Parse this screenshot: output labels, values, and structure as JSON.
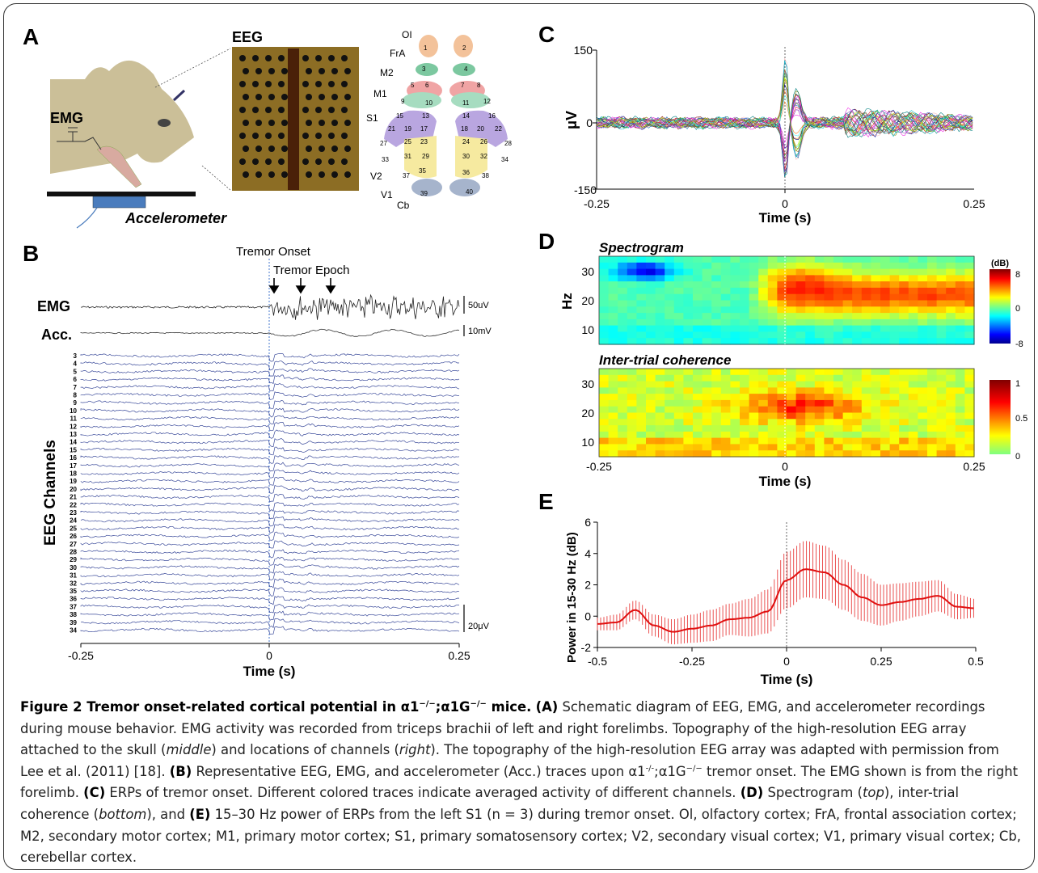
{
  "panelA": {
    "letter": "A",
    "emg_label": "EMG",
    "eeg_label": "EEG",
    "accelerometer_label": "Accelerometer",
    "regions": [
      "OI",
      "FrA",
      "M2",
      "M1",
      "S1",
      "V2",
      "V1",
      "Cb"
    ],
    "channel_numbers": [
      "1",
      "2",
      "3",
      "4",
      "5",
      "6",
      "7",
      "8",
      "9",
      "10",
      "11",
      "12",
      "13",
      "14",
      "15",
      "16",
      "17",
      "18",
      "19",
      "20",
      "21",
      "22",
      "23",
      "24",
      "25",
      "26",
      "27",
      "28",
      "29",
      "30",
      "31",
      "32",
      "33",
      "34",
      "35",
      "36",
      "37",
      "38",
      "39",
      "40"
    ]
  },
  "panelB": {
    "letter": "B",
    "tremor_onset": "Tremor Onset",
    "tremor_epoch": "Tremor Epoch",
    "emg_label": "EMG",
    "acc_label": "Acc.",
    "emg_scale": "50uV",
    "acc_scale": "10mV",
    "eeg_scale": "20μV",
    "ylabel": "EEG Channels",
    "channels": [
      "3",
      "4",
      "5",
      "6",
      "7",
      "8",
      "9",
      "10",
      "11",
      "12",
      "13",
      "14",
      "15",
      "16",
      "17",
      "18",
      "19",
      "20",
      "21",
      "22",
      "23",
      "24",
      "25",
      "26",
      "27",
      "28",
      "29",
      "30",
      "31",
      "32",
      "35",
      "36",
      "37",
      "38",
      "39",
      "34"
    ],
    "xticks": [
      "-0.25",
      "0",
      "0.25"
    ],
    "xlabel": "Time (s)"
  },
  "panelC": {
    "letter": "C",
    "ylabel": "μV",
    "yticks": [
      "150",
      "0",
      "-150"
    ],
    "xticks": [
      "-0.25",
      "0",
      "0.25"
    ],
    "xlabel": "Time (s)"
  },
  "panelD": {
    "letter": "D",
    "spectrogram_title": "Spectrogram",
    "itc_title": "Inter-trial coherence",
    "ylabel": "Hz",
    "yticks": [
      "30",
      "20",
      "10"
    ],
    "colorbar1_unit": "(dB)",
    "colorbar1_ticks": [
      "8",
      "0",
      "-8"
    ],
    "colorbar2_ticks": [
      "1",
      "0.5",
      "0"
    ],
    "xticks": [
      "-0.25",
      "0",
      "0.25"
    ],
    "xlabel": "Time (s)"
  },
  "panelE": {
    "letter": "E",
    "ylabel": "Power in 15-30 Hz (dB)",
    "yticks": [
      "6",
      "4",
      "2",
      "0",
      "-2"
    ],
    "xticks": [
      "-0.5",
      "-0.25",
      "0",
      "0.25",
      "0.5"
    ],
    "xlabel": "Time (s)"
  },
  "caption": {
    "lead": "Figure 2 Tremor onset-related cortical potential in α1",
    "lead_sup1": "−/−",
    "lead_mid": ";α1G",
    "lead_sup2": "−/−",
    "lead_end": " mice.",
    "tA": "(A)",
    "t1": " Schematic diagram of EEG, EMG, and accelerometer recordings during mouse behavior. EMG activity was recorded from triceps brachii of left and right forelimbs. Topography of the high-resolution EEG array attached to the skull (",
    "middle": "middle",
    "t2": ") and locations of channels (",
    "right": "right",
    "t3": "). The topography of the high-resolution EEG array was adapted with permission from Lee et al. (2011) [18]. ",
    "tB": "(B)",
    "t4": " Representative EEG, EMG, and accelerometer (Acc.) traces upon α1",
    "sup3": "-/-",
    "t5": ";α1G",
    "sup4": "−/−",
    "t6": " tremor onset. The EMG shown is from the right forelimb. ",
    "tC": "(C)",
    "t7": " ERPs of tremor onset. Different colored traces indicate averaged activity of different channels. ",
    "tD": "(D)",
    "t8": " Spectrogram (",
    "top": "top",
    "t9": "), inter-trial coherence (",
    "bottom": "bottom",
    "t10": "), and ",
    "tE": "(E)",
    "t11": " 15–30 Hz power of ERPs from the left S1 (n = 3) during tremor onset. Ol, olfactory cortex; FrA, frontal association cortex; M2, secondary motor cortex; M1, primary motor cortex; S1, primary somatosensory cortex; V2, secondary visual cortex; V1, primary visual cortex; Cb, cerebellar cortex."
  },
  "chart_data": [
    {
      "type": "line",
      "panel": "C",
      "ylabel": "μV",
      "xlabel": "Time (s)",
      "xlim": [
        -0.25,
        0.25
      ],
      "ylim": [
        -150,
        150
      ],
      "x": [
        -0.25,
        -0.2,
        -0.15,
        -0.1,
        -0.05,
        -0.02,
        0,
        0.01,
        0.02,
        0.05,
        0.1,
        0.15,
        0.2,
        0.25
      ],
      "series": [
        {
          "values": [
            0,
            3,
            -4,
            5,
            -6,
            8,
            130,
            60,
            -40,
            20,
            30,
            -25,
            15,
            5
          ]
        },
        {
          "values": [
            2,
            -3,
            4,
            -5,
            6,
            -10,
            -100,
            -50,
            30,
            -15,
            -30,
            25,
            -20,
            -3
          ]
        }
      ]
    },
    {
      "type": "heatmap",
      "panel": "D",
      "title": "Spectrogram",
      "xlabel": "Time (s)",
      "ylabel": "Hz",
      "xlim": [
        -0.25,
        0.25
      ],
      "ylim": [
        5,
        35
      ],
      "colorbar": {
        "label": "(dB)",
        "range": [
          -8,
          8
        ]
      }
    },
    {
      "type": "heatmap",
      "panel": "D",
      "title": "Inter-trial coherence",
      "xlabel": "Time (s)",
      "ylabel": "Hz",
      "xlim": [
        -0.25,
        0.25
      ],
      "ylim": [
        5,
        35
      ],
      "colorbar": {
        "range": [
          0,
          1
        ]
      }
    },
    {
      "type": "line",
      "panel": "E",
      "xlabel": "Time (s)",
      "ylabel": "Power in 15-30 Hz (dB)",
      "xlim": [
        -0.5,
        0.5
      ],
      "ylim": [
        -2,
        6
      ],
      "x": [
        -0.5,
        -0.45,
        -0.4,
        -0.35,
        -0.3,
        -0.25,
        -0.2,
        -0.15,
        -0.1,
        -0.05,
        0,
        0.05,
        0.1,
        0.15,
        0.2,
        0.25,
        0.3,
        0.35,
        0.4,
        0.45,
        0.5
      ],
      "values": [
        -0.5,
        -0.4,
        0.4,
        -0.6,
        -1.0,
        -0.8,
        -0.6,
        -0.2,
        -0.1,
        0.3,
        2.3,
        3.0,
        2.8,
        2.0,
        1.2,
        0.7,
        0.9,
        1.1,
        1.3,
        0.6,
        0.5
      ],
      "error": [
        0.4,
        0.5,
        0.6,
        0.7,
        0.8,
        0.9,
        1.0,
        1.0,
        1.2,
        1.4,
        1.8,
        1.8,
        1.7,
        1.6,
        1.5,
        1.3,
        1.2,
        1.1,
        1.0,
        0.8,
        0.6
      ]
    }
  ]
}
